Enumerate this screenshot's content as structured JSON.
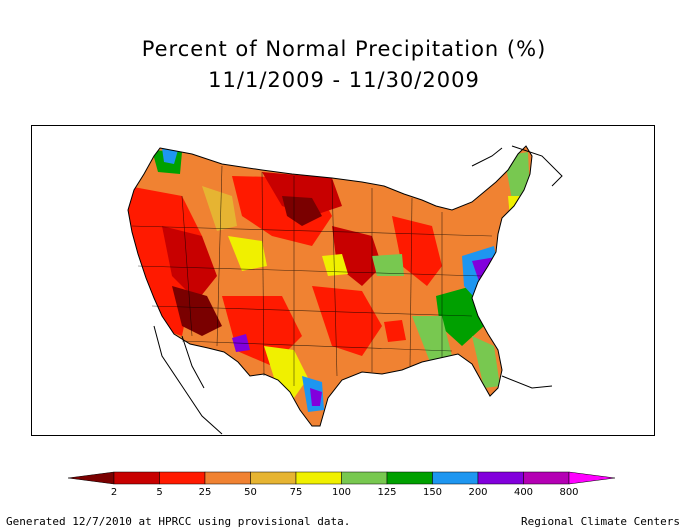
{
  "title": "Percent of Normal Precipitation (%)",
  "subtitle": "11/1/2009 - 11/30/2009",
  "legend": {
    "ticks": [
      "2",
      "5",
      "25",
      "50",
      "75",
      "100",
      "125",
      "150",
      "200",
      "400",
      "800"
    ],
    "colors": [
      "#7a0000",
      "#c80000",
      "#ff1a00",
      "#f08232",
      "#e6b432",
      "#f0f000",
      "#78c850",
      "#00a000",
      "#1e96f0",
      "#8200dc",
      "#b400b4",
      "#ff00ff"
    ]
  },
  "footer": {
    "left": "Generated 12/7/2010 at HPRCC using provisional data.",
    "right": "Regional Climate Centers"
  }
}
